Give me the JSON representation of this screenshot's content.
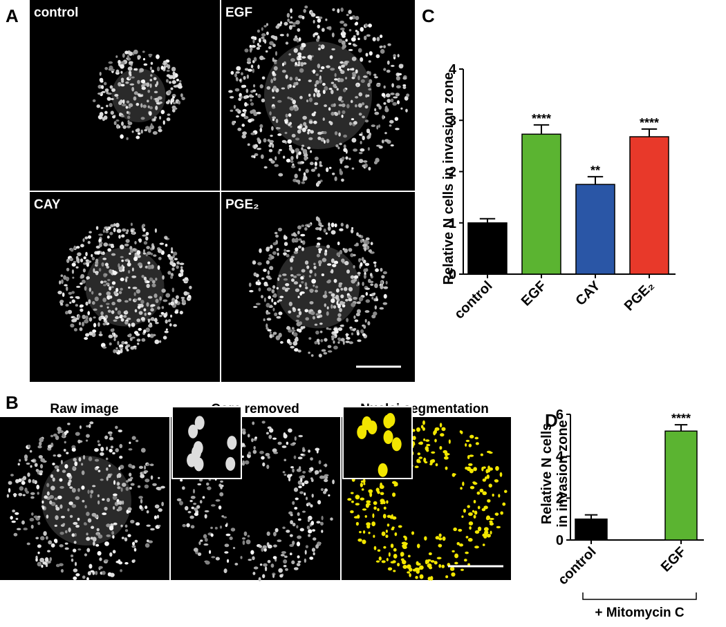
{
  "figure_labels": [
    "A",
    "B",
    "C",
    "D"
  ],
  "panel_a": {
    "images": [
      "control",
      "EGF",
      "CAY",
      "PGE₂"
    ]
  },
  "panel_b": {
    "images": [
      "Raw image",
      "Core removed",
      "Nuclei segmentation"
    ]
  },
  "chart_data": [
    {
      "type": "bar",
      "ylabel": "Relative N cells in invasion zone",
      "categories": [
        "control",
        "EGF",
        "CAY",
        "PGE₂"
      ],
      "values": [
        1.0,
        2.73,
        1.75,
        2.68
      ],
      "errors": [
        0.08,
        0.18,
        0.15,
        0.15
      ],
      "colors": [
        "#000000",
        "#5bb431",
        "#2a56a6",
        "#e8392a"
      ],
      "annotations": [
        null,
        "****",
        "**",
        "****"
      ],
      "ylim": [
        0,
        4
      ],
      "yticks": [
        0,
        1,
        2,
        3,
        4
      ]
    },
    {
      "type": "bar",
      "ylabel": [
        "Relative N cells",
        "in invasion zone"
      ],
      "categories": [
        "control",
        "EGF"
      ],
      "values": [
        1.0,
        5.2
      ],
      "errors": [
        0.2,
        0.3
      ],
      "colors": [
        "#000000",
        "#5bb431"
      ],
      "annotations": [
        null,
        "****"
      ],
      "group_label": "+ Mitomycin C",
      "ylim": [
        0,
        6
      ],
      "yticks": [
        0,
        2,
        4,
        6
      ]
    }
  ]
}
